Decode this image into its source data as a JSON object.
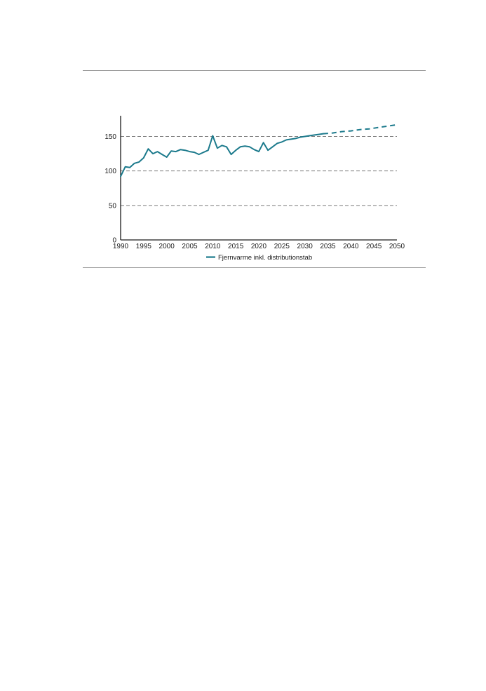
{
  "chart_data": {
    "type": "line",
    "xlim": [
      1990,
      2050
    ],
    "ylim": [
      0,
      180
    ],
    "x_ticks": [
      1990,
      1995,
      2000,
      2005,
      2010,
      2015,
      2020,
      2025,
      2030,
      2035,
      2040,
      2045,
      2050
    ],
    "y_ticks": [
      0,
      50,
      100,
      150
    ],
    "grid": "horizontal-dashed",
    "legend_placement": "bottom-center",
    "series": [
      {
        "name": "Fjernvarme inkl. distributionstab",
        "color": "#1c7a8c",
        "historical": {
          "x": [
            1990,
            1991,
            1992,
            1993,
            1994,
            1995,
            1996,
            1997,
            1998,
            1999,
            2000,
            2001,
            2002,
            2003,
            2004,
            2005,
            2006,
            2007,
            2008,
            2009,
            2010,
            2011,
            2012,
            2013,
            2014,
            2015,
            2016,
            2017,
            2018,
            2019,
            2020,
            2021,
            2022,
            2023,
            2024,
            2025,
            2026,
            2027,
            2028,
            2029,
            2030,
            2031,
            2032,
            2033,
            2034
          ],
          "y": [
            92,
            106,
            105,
            111,
            113,
            119,
            132,
            125,
            128,
            124,
            120,
            129,
            128,
            131,
            130,
            128,
            127,
            124,
            127,
            130,
            151,
            133,
            137,
            135,
            124,
            130,
            135,
            136,
            135,
            131,
            128,
            141,
            130,
            135,
            140,
            142,
            145,
            146,
            147,
            149,
            150,
            151,
            152,
            153,
            154
          ]
        },
        "projection": {
          "x": [
            2034,
            2036,
            2038,
            2040,
            2042,
            2044,
            2046,
            2048,
            2050
          ],
          "y": [
            154,
            155,
            157,
            158,
            160,
            161,
            163,
            165,
            167
          ]
        }
      }
    ]
  }
}
